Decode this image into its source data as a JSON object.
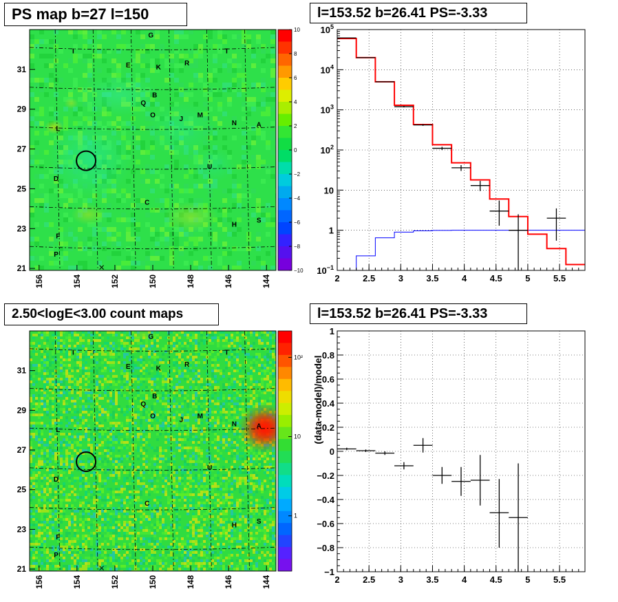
{
  "panels": {
    "ps_map": {
      "title": "PS map b=27 l=150"
    },
    "spectrum": {
      "title": "l=153.52 b=26.41 PS=-3.33"
    },
    "count_map": {
      "title": "2.50<logE<3.00 count maps"
    },
    "residual": {
      "title": "l=153.52 b=26.41 PS=-3.33"
    }
  },
  "chart_data": [
    {
      "type": "heatmap",
      "name": "ps_map",
      "title": "PS map b=27 l=150",
      "x_ticks": [
        "156",
        "154",
        "152",
        "150",
        "148",
        "146",
        "144"
      ],
      "y_ticks": [
        "21",
        "23",
        "25",
        "27",
        "29",
        "31"
      ],
      "xlim": [
        156.5,
        143.5
      ],
      "ylim": [
        20.9,
        33.0
      ],
      "colorbar": {
        "ticks": [
          "10",
          "8",
          "6",
          "4",
          "2",
          "0",
          "−2",
          "−4",
          "−6",
          "−8",
          "−10"
        ],
        "range": [
          -10,
          10
        ]
      },
      "source_labels": [
        {
          "label": "G",
          "l": 150.1,
          "b": 32.6
        },
        {
          "label": "I",
          "l": 154.2,
          "b": 31.8
        },
        {
          "label": "T",
          "l": 146.1,
          "b": 31.8
        },
        {
          "label": "E",
          "l": 151.3,
          "b": 31.1
        },
        {
          "label": "K",
          "l": 149.7,
          "b": 31.0
        },
        {
          "label": "R",
          "l": 148.2,
          "b": 31.2
        },
        {
          "label": "B",
          "l": 149.9,
          "b": 29.6
        },
        {
          "label": "Q",
          "l": 150.5,
          "b": 29.2
        },
        {
          "label": "O",
          "l": 150.0,
          "b": 28.6
        },
        {
          "label": "J",
          "l": 148.5,
          "b": 28.4
        },
        {
          "label": "M",
          "l": 147.5,
          "b": 28.6
        },
        {
          "label": "N",
          "l": 145.7,
          "b": 28.2
        },
        {
          "label": "A",
          "l": 144.4,
          "b": 28.1
        },
        {
          "label": "L",
          "l": 155.0,
          "b": 27.9
        },
        {
          "label": "U",
          "l": 147.0,
          "b": 26.0
        },
        {
          "label": "D",
          "l": 155.1,
          "b": 25.4
        },
        {
          "label": "C",
          "l": 150.3,
          "b": 24.2
        },
        {
          "label": "H",
          "l": 145.7,
          "b": 23.1
        },
        {
          "label": "S",
          "l": 144.4,
          "b": 23.3
        },
        {
          "label": "F",
          "l": 155.0,
          "b": 22.5
        },
        {
          "label": "P",
          "l": 155.1,
          "b": 21.6
        }
      ],
      "highlight_circle": {
        "l": 153.52,
        "b": 26.41
      }
    },
    {
      "type": "line",
      "name": "spectrum",
      "title": "l=153.52 b=26.41 PS=-3.33",
      "xlim": [
        2,
        5.9
      ],
      "ylim": [
        0.1,
        100000
      ],
      "y_scale": "log",
      "x_ticks": [
        "2",
        "2.5",
        "3",
        "3.5",
        "4",
        "4.5",
        "5",
        "5.5"
      ],
      "y_ticks": [
        {
          "v": 0.1,
          "base": "10",
          "exp": "−1"
        },
        {
          "v": 1,
          "base": "1",
          "exp": ""
        },
        {
          "v": 10,
          "base": "10",
          "exp": ""
        },
        {
          "v": 100,
          "base": "10",
          "exp": "2"
        },
        {
          "v": 1000,
          "base": "10",
          "exp": "3"
        },
        {
          "v": 10000,
          "base": "10",
          "exp": "4"
        },
        {
          "v": 100000,
          "base": "10",
          "exp": "5"
        }
      ],
      "grid": true,
      "model_red": {
        "edges": [
          2.0,
          2.3,
          2.6,
          2.9,
          3.2,
          3.5,
          3.8,
          4.1,
          4.4,
          4.7,
          5.0,
          5.3,
          5.6,
          5.9
        ],
        "values": [
          60000,
          20000,
          5000,
          1300,
          430,
          135,
          48,
          18,
          6,
          2.2,
          0.8,
          0.35,
          0.14
        ]
      },
      "model_blue": {
        "edges": [
          2.0,
          2.3,
          2.6,
          2.9,
          3.2,
          3.5,
          3.8,
          4.1,
          4.4,
          4.7,
          5.0,
          5.3,
          5.6,
          5.9
        ],
        "values": [
          0.1,
          0.23,
          0.65,
          0.9,
          0.97,
          0.99,
          1.0,
          1.0,
          1.0,
          1.0,
          1.0,
          1.0,
          1.0
        ]
      },
      "data_points": [
        {
          "x": 2.15,
          "y": 62000,
          "xerr": 0.15,
          "ylo": 61000,
          "yhi": 63000
        },
        {
          "x": 2.45,
          "y": 20000,
          "xerr": 0.15,
          "ylo": 19700,
          "yhi": 20300
        },
        {
          "x": 2.75,
          "y": 5000,
          "xerr": 0.15,
          "ylo": 4900,
          "yhi": 5100
        },
        {
          "x": 3.05,
          "y": 1200,
          "xerr": 0.15,
          "ylo": 1150,
          "yhi": 1250
        },
        {
          "x": 3.35,
          "y": 420,
          "xerr": 0.15,
          "ylo": 400,
          "yhi": 440
        },
        {
          "x": 3.65,
          "y": 110,
          "xerr": 0.15,
          "ylo": 100,
          "yhi": 120
        },
        {
          "x": 3.95,
          "y": 36,
          "xerr": 0.15,
          "ylo": 30,
          "yhi": 42
        },
        {
          "x": 4.25,
          "y": 13,
          "xerr": 0.15,
          "ylo": 9.5,
          "yhi": 17
        },
        {
          "x": 4.55,
          "y": 3,
          "xerr": 0.15,
          "ylo": 1.3,
          "yhi": 5.5
        },
        {
          "x": 4.85,
          "y": 1,
          "xerr": 0.15,
          "ylo": 0.1,
          "yhi": 2.5
        },
        {
          "x": 5.45,
          "y": 2,
          "xerr": 0.15,
          "ylo": 0.55,
          "yhi": 3.5
        }
      ]
    },
    {
      "type": "heatmap",
      "name": "count_map",
      "title": "2.50<logE<3.00 count maps",
      "x_ticks": [
        "156",
        "154",
        "152",
        "150",
        "148",
        "146",
        "144"
      ],
      "y_ticks": [
        "21",
        "23",
        "25",
        "27",
        "29",
        "31"
      ],
      "xlim": [
        156.5,
        143.5
      ],
      "ylim": [
        20.9,
        33.0
      ],
      "colorbar": {
        "ticks": [
          "10²",
          "10",
          "1"
        ],
        "scale": "log"
      },
      "bright_source": "A",
      "highlight_circle": {
        "l": 153.52,
        "b": 26.41
      }
    },
    {
      "type": "scatter",
      "name": "residual",
      "title": "l=153.52 b=26.41 PS=-3.33",
      "ylabel": "(data-model)/model",
      "xlim": [
        2,
        5.9
      ],
      "ylim": [
        -1,
        1
      ],
      "x_ticks": [
        "2",
        "2.5",
        "3",
        "3.5",
        "4",
        "4.5",
        "5",
        "5.5"
      ],
      "y_ticks": [
        "1",
        "0.8",
        "0.6",
        "0.4",
        "0.2",
        "0",
        "−0.2",
        "−0.4",
        "−0.6",
        "−0.8",
        "−1"
      ],
      "grid": true,
      "points": [
        {
          "x": 2.15,
          "y": 0.02,
          "xerr": 0.15,
          "ylo": 0.01,
          "yhi": 0.03
        },
        {
          "x": 2.45,
          "y": 0.005,
          "xerr": 0.15,
          "ylo": -0.005,
          "yhi": 0.015
        },
        {
          "x": 2.75,
          "y": -0.015,
          "xerr": 0.15,
          "ylo": -0.03,
          "yhi": 0.0
        },
        {
          "x": 3.05,
          "y": -0.12,
          "xerr": 0.15,
          "ylo": -0.15,
          "yhi": -0.09
        },
        {
          "x": 3.35,
          "y": 0.05,
          "xerr": 0.15,
          "ylo": -0.01,
          "yhi": 0.11
        },
        {
          "x": 3.65,
          "y": -0.2,
          "xerr": 0.15,
          "ylo": -0.27,
          "yhi": -0.13
        },
        {
          "x": 3.95,
          "y": -0.25,
          "xerr": 0.15,
          "ylo": -0.37,
          "yhi": -0.13
        },
        {
          "x": 4.25,
          "y": -0.24,
          "xerr": 0.15,
          "ylo": -0.45,
          "yhi": -0.03
        },
        {
          "x": 4.55,
          "y": -0.51,
          "xerr": 0.15,
          "ylo": -0.8,
          "yhi": -0.23
        },
        {
          "x": 4.85,
          "y": -0.55,
          "xerr": 0.15,
          "ylo": -1.0,
          "yhi": -0.1
        }
      ]
    }
  ],
  "colors": {
    "map_green": "#2ee04a",
    "model_red": "#ff0000",
    "model_blue": "#0000ff",
    "data": "#000000"
  }
}
